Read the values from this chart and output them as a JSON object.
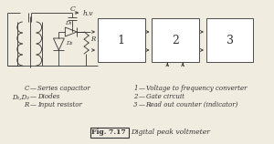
{
  "bg_color": "#f0ece0",
  "line_color": "#333333",
  "title": "Fig. 7.17",
  "subtitle": "Digital peak voltmeter",
  "legend_left": [
    [
      "C",
      "Series capacitor"
    ],
    [
      "D₁,D₂",
      "Diodes"
    ],
    [
      "R",
      "Input resistor"
    ]
  ],
  "legend_right": [
    [
      "1",
      "Voltage to frequency converter"
    ],
    [
      "2",
      "Gate circuit"
    ],
    [
      "3",
      "Read out counter (indicator)"
    ]
  ],
  "box_labels": [
    "1",
    "2",
    "3"
  ],
  "hv_label": "h.v",
  "C_label": "C",
  "D1_label": "D₁",
  "D2_label": "D₂",
  "R_label": "R"
}
